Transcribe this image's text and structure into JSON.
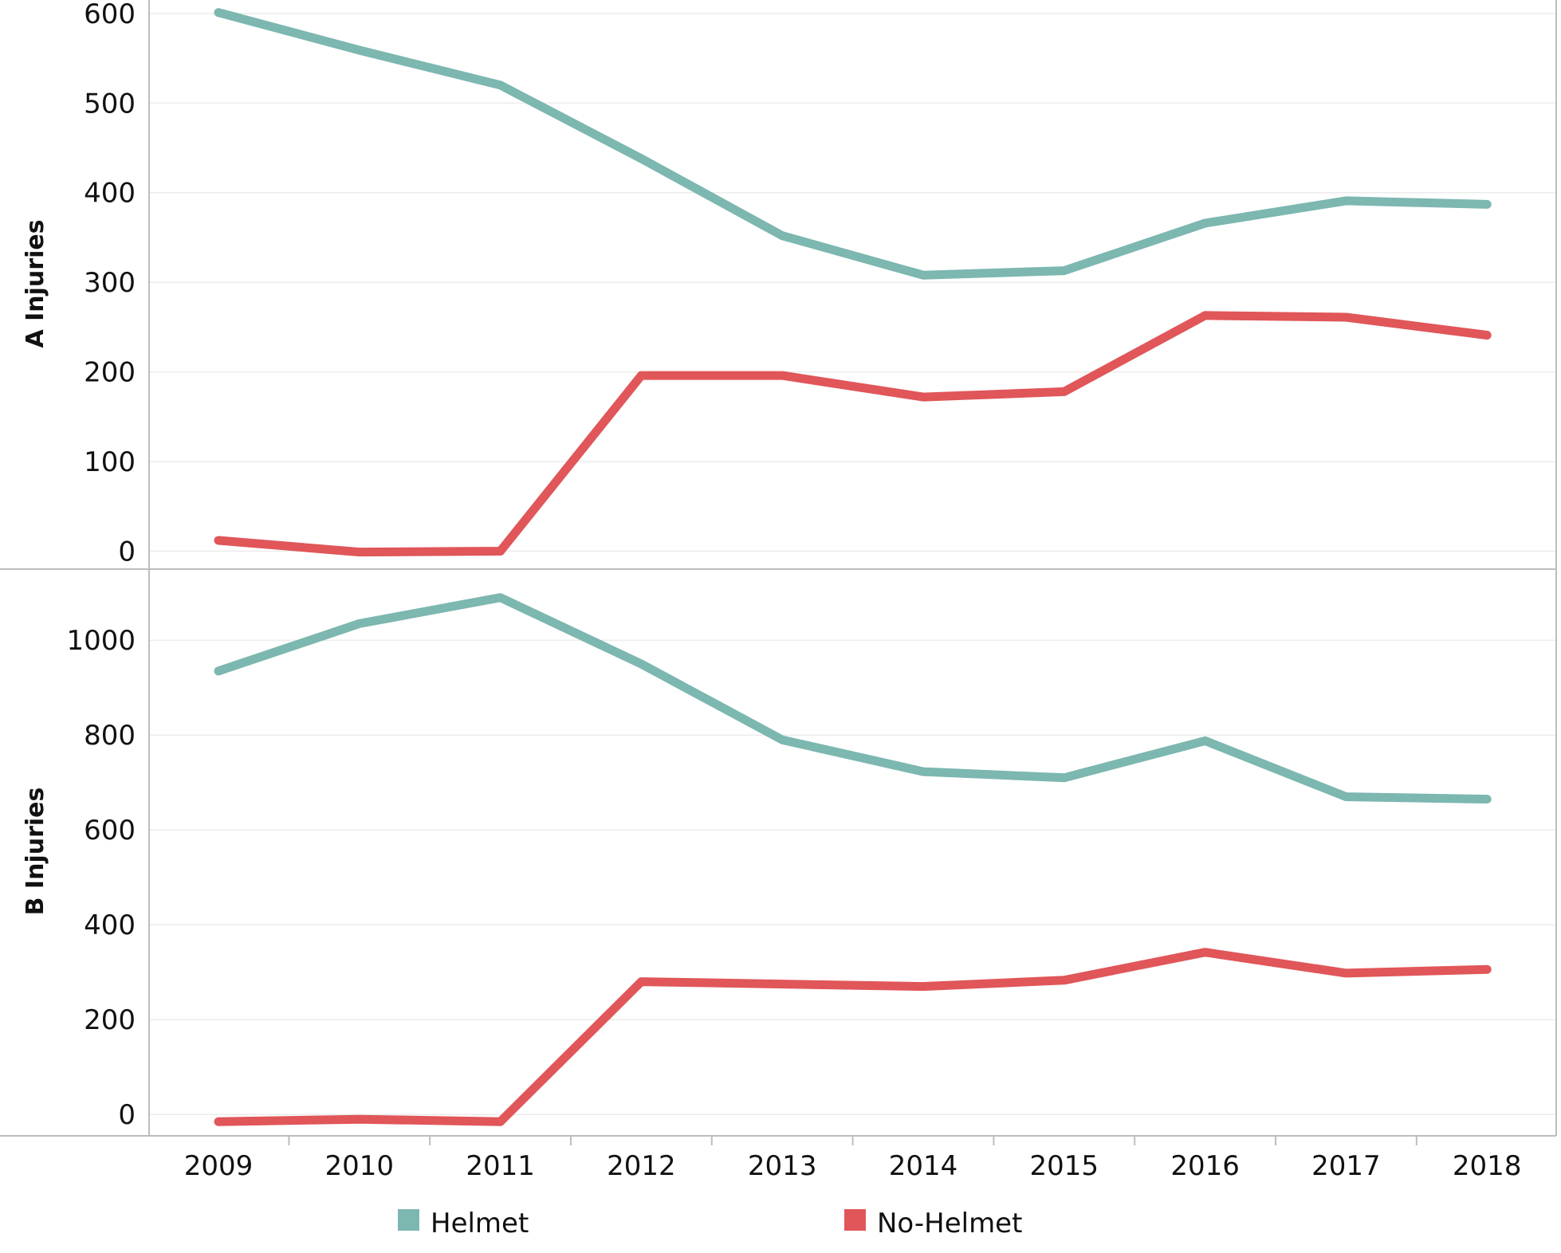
{
  "chart_data": {
    "type": "line",
    "categories": [
      "2009",
      "2010",
      "2011",
      "2012",
      "2013",
      "2014",
      "2015",
      "2016",
      "2017",
      "2018"
    ],
    "colors": {
      "Helmet": "#7cb7b0",
      "No-Helmet": "#e05659"
    },
    "legend": {
      "position": "bottom",
      "items": [
        "Helmet",
        "No-Helmet"
      ]
    },
    "panels": [
      {
        "ylabel": "A Injuries",
        "ylim": [
          -20,
          615
        ],
        "yticks": [
          0,
          100,
          200,
          300,
          400,
          500,
          600
        ],
        "grid": true,
        "series": [
          {
            "name": "Helmet",
            "values": [
              601,
              559,
              520,
              438,
              352,
              308,
              313,
              366,
              391,
              387
            ]
          },
          {
            "name": "No-Helmet",
            "values": [
              12,
              -1,
              0,
              196,
              196,
              172,
              178,
              263,
              261,
              241
            ]
          }
        ]
      },
      {
        "ylabel": "B Injuries",
        "ylim": [
          -45,
          1150
        ],
        "yticks": [
          0,
          200,
          400,
          600,
          800,
          1000
        ],
        "grid": true,
        "series": [
          {
            "name": "Helmet",
            "values": [
              935,
              1035,
              1090,
              950,
              790,
              723,
              710,
              788,
              670,
              665
            ]
          },
          {
            "name": "No-Helmet",
            "values": [
              -15,
              -10,
              -15,
              280,
              275,
              270,
              283,
              342,
              298,
              306
            ]
          }
        ]
      }
    ]
  }
}
